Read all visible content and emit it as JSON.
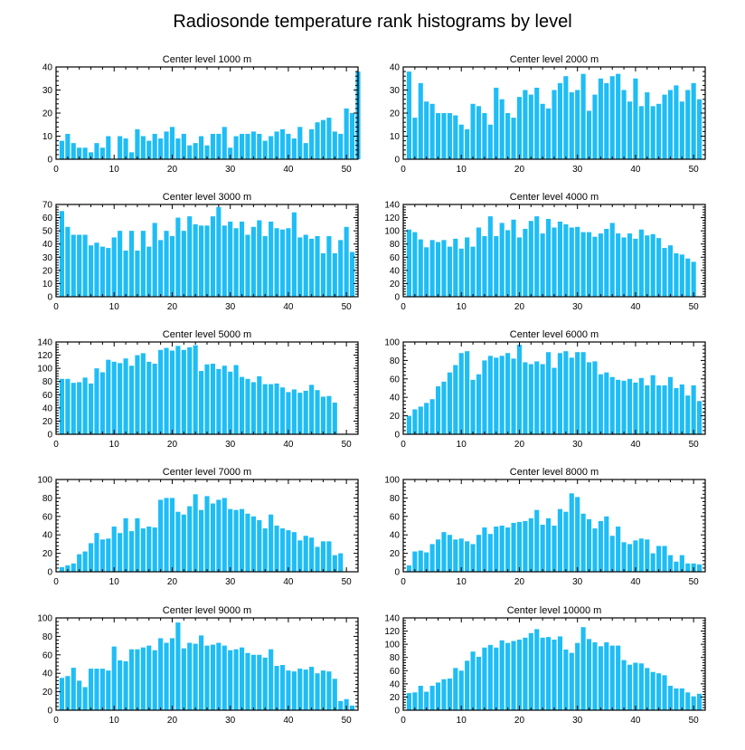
{
  "title": "Radiosonde temperature rank histograms by level",
  "colors": {
    "bar": "#1ebdf5",
    "axis": "#000000",
    "background": "#ffffff"
  },
  "chart_data": [
    {
      "type": "bar",
      "title": "Center level 1000 m",
      "xlim": [
        0,
        52
      ],
      "xticks": [
        0,
        10,
        20,
        30,
        40,
        50
      ],
      "ylim": [
        0,
        40
      ],
      "yticks": [
        0,
        10,
        20,
        30,
        40
      ],
      "values": [
        8,
        11,
        7,
        5,
        5,
        3,
        7,
        5,
        10,
        0,
        10,
        9,
        3,
        13,
        10,
        8,
        11,
        9,
        12,
        14,
        9,
        11,
        6,
        7,
        10,
        6,
        11,
        11,
        14,
        5,
        10,
        11,
        11,
        12,
        11,
        8,
        10,
        12,
        13,
        11,
        9,
        14,
        7,
        13,
        16,
        17,
        18,
        12,
        11,
        22,
        20,
        38
      ]
    },
    {
      "type": "bar",
      "title": "Center level 2000 m",
      "xlim": [
        0,
        52
      ],
      "xticks": [
        0,
        10,
        20,
        30,
        40,
        50
      ],
      "ylim": [
        0,
        40
      ],
      "yticks": [
        0,
        10,
        20,
        30,
        40
      ],
      "values": [
        38,
        18,
        33,
        25,
        24,
        20,
        20,
        20,
        19,
        15,
        13,
        24,
        23,
        20,
        15,
        31,
        26,
        20,
        18,
        27,
        30,
        28,
        31,
        24,
        22,
        30,
        33,
        36,
        29,
        30,
        37,
        21,
        28,
        35,
        33,
        36,
        37,
        30,
        25,
        35,
        23,
        29,
        23,
        24,
        28,
        30,
        32,
        25,
        30,
        33,
        26,
        0
      ]
    },
    {
      "type": "bar",
      "title": "Center level 3000 m",
      "xlim": [
        0,
        52
      ],
      "xticks": [
        0,
        10,
        20,
        30,
        40,
        50
      ],
      "ylim": [
        0,
        70
      ],
      "yticks": [
        0,
        10,
        20,
        30,
        40,
        50,
        60,
        70
      ],
      "values": [
        65,
        53,
        47,
        47,
        47,
        39,
        41,
        38,
        37,
        45,
        50,
        35,
        50,
        35,
        50,
        38,
        56,
        43,
        50,
        46,
        60,
        50,
        61,
        55,
        54,
        54,
        61,
        68,
        54,
        57,
        52,
        57,
        47,
        53,
        58,
        46,
        57,
        52,
        51,
        52,
        64,
        45,
        47,
        44,
        46,
        33,
        46,
        33,
        43,
        53,
        34,
        0
      ]
    },
    {
      "type": "bar",
      "title": "Center level 4000 m",
      "xlim": [
        0,
        52
      ],
      "xticks": [
        0,
        10,
        20,
        30,
        40,
        50
      ],
      "ylim": [
        0,
        140
      ],
      "yticks": [
        0,
        20,
        40,
        60,
        80,
        100,
        120,
        140
      ],
      "values": [
        102,
        98,
        87,
        75,
        86,
        83,
        86,
        76,
        88,
        73,
        90,
        76,
        105,
        92,
        122,
        92,
        112,
        101,
        117,
        90,
        103,
        115,
        122,
        96,
        118,
        105,
        114,
        110,
        105,
        106,
        98,
        98,
        91,
        96,
        103,
        112,
        96,
        90,
        96,
        88,
        102,
        93,
        95,
        89,
        74,
        78,
        66,
        64,
        58,
        53,
        0,
        0
      ]
    },
    {
      "type": "bar",
      "title": "Center level 5000 m",
      "xlim": [
        0,
        52
      ],
      "xticks": [
        0,
        10,
        20,
        30,
        40,
        50
      ],
      "ylim": [
        0,
        140
      ],
      "yticks": [
        0,
        20,
        40,
        60,
        80,
        100,
        120,
        140
      ],
      "values": [
        84,
        84,
        78,
        79,
        86,
        77,
        100,
        94,
        113,
        110,
        108,
        115,
        104,
        120,
        123,
        110,
        107,
        128,
        131,
        127,
        134,
        128,
        132,
        135,
        96,
        106,
        107,
        99,
        104,
        95,
        105,
        87,
        84,
        79,
        88,
        76,
        76,
        77,
        71,
        64,
        68,
        63,
        66,
        75,
        67,
        57,
        58,
        48,
        0,
        0,
        0,
        0
      ]
    },
    {
      "type": "bar",
      "title": "Center level 6000 m",
      "xlim": [
        0,
        52
      ],
      "xticks": [
        0,
        10,
        20,
        30,
        40,
        50
      ],
      "ylim": [
        0,
        100
      ],
      "yticks": [
        0,
        20,
        40,
        60,
        80,
        100
      ],
      "values": [
        20,
        27,
        30,
        34,
        38,
        52,
        57,
        67,
        75,
        88,
        90,
        59,
        65,
        80,
        85,
        83,
        85,
        88,
        82,
        97,
        78,
        76,
        79,
        76,
        89,
        72,
        88,
        90,
        83,
        89,
        89,
        78,
        79,
        65,
        67,
        62,
        59,
        58,
        60,
        56,
        61,
        53,
        64,
        53,
        53,
        62,
        50,
        54,
        42,
        53,
        36,
        0
      ]
    },
    {
      "type": "bar",
      "title": "Center level 7000 m",
      "xlim": [
        0,
        52
      ],
      "xticks": [
        0,
        10,
        20,
        30,
        40,
        50
      ],
      "ylim": [
        0,
        100
      ],
      "yticks": [
        0,
        20,
        40,
        60,
        80,
        100
      ],
      "values": [
        5,
        7,
        9,
        19,
        22,
        31,
        42,
        35,
        36,
        49,
        42,
        58,
        44,
        58,
        47,
        49,
        48,
        78,
        80,
        80,
        65,
        62,
        71,
        84,
        67,
        82,
        74,
        78,
        80,
        68,
        67,
        68,
        63,
        60,
        56,
        47,
        62,
        50,
        47,
        45,
        43,
        34,
        39,
        37,
        27,
        33,
        33,
        18,
        20,
        0,
        0,
        0
      ]
    },
    {
      "type": "bar",
      "title": "Center level 8000 m",
      "xlim": [
        0,
        52
      ],
      "xticks": [
        0,
        10,
        20,
        30,
        40,
        50
      ],
      "ylim": [
        0,
        100
      ],
      "yticks": [
        0,
        20,
        40,
        60,
        80,
        100
      ],
      "values": [
        7,
        22,
        23,
        21,
        30,
        35,
        43,
        40,
        35,
        36,
        33,
        30,
        40,
        48,
        41,
        49,
        50,
        48,
        53,
        54,
        55,
        58,
        67,
        51,
        58,
        50,
        68,
        65,
        85,
        81,
        63,
        57,
        47,
        55,
        60,
        39,
        49,
        32,
        30,
        34,
        36,
        35,
        20,
        28,
        28,
        18,
        11,
        18,
        9,
        9,
        8,
        0
      ]
    },
    {
      "type": "bar",
      "title": "Center level 9000 m",
      "xlim": [
        0,
        52
      ],
      "xticks": [
        0,
        10,
        20,
        30,
        40,
        50
      ],
      "ylim": [
        0,
        100
      ],
      "yticks": [
        0,
        20,
        40,
        60,
        80,
        100
      ],
      "values": [
        35,
        37,
        46,
        32,
        25,
        45,
        45,
        45,
        43,
        69,
        54,
        53,
        66,
        66,
        68,
        70,
        65,
        78,
        73,
        78,
        95,
        67,
        73,
        72,
        81,
        70,
        71,
        73,
        70,
        65,
        66,
        68,
        62,
        60,
        60,
        57,
        66,
        48,
        49,
        43,
        42,
        45,
        44,
        47,
        40,
        43,
        42,
        34,
        10,
        12,
        5,
        0
      ]
    },
    {
      "type": "bar",
      "title": "Center level 10000 m",
      "xlim": [
        0,
        52
      ],
      "xticks": [
        0,
        10,
        20,
        30,
        40,
        50
      ],
      "ylim": [
        0,
        140
      ],
      "yticks": [
        0,
        20,
        40,
        60,
        80,
        100,
        120,
        140
      ],
      "values": [
        26,
        27,
        37,
        28,
        37,
        42,
        47,
        48,
        64,
        60,
        75,
        89,
        81,
        95,
        99,
        95,
        106,
        102,
        105,
        107,
        110,
        117,
        123,
        110,
        111,
        107,
        112,
        92,
        87,
        102,
        126,
        108,
        103,
        97,
        103,
        98,
        98,
        76,
        69,
        72,
        71,
        64,
        58,
        56,
        53,
        37,
        33,
        33,
        27,
        21,
        25,
        0
      ]
    }
  ]
}
